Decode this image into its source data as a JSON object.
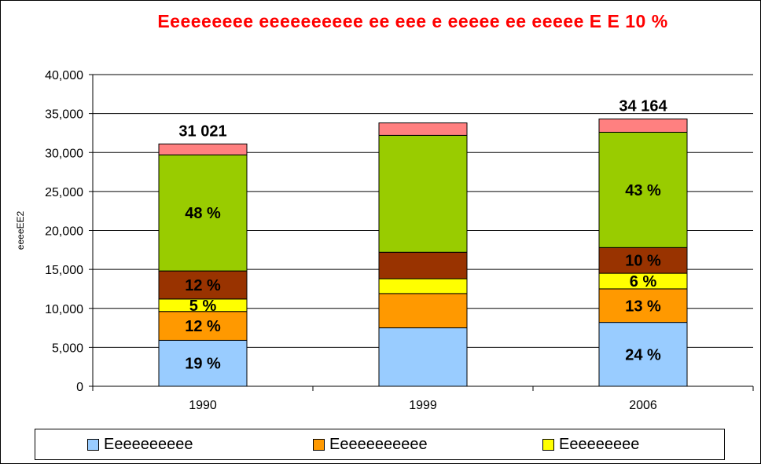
{
  "chart_data": {
    "type": "bar",
    "stacked": true,
    "title": "Eeeeeeeee eeeeeeeeee ee eee e eeeee ee eeeee E E 10 %",
    "title_color": "#ff0000",
    "ylabel": "eeeeEE2",
    "ylim": [
      0,
      40000
    ],
    "yticks": [
      "0",
      "5,000",
      "10,000",
      "15,000",
      "20,000",
      "25,000",
      "30,000",
      "35,000",
      "40,000"
    ],
    "ytick_values": [
      0,
      5000,
      10000,
      15000,
      20000,
      25000,
      30000,
      35000,
      40000
    ],
    "grid": true,
    "categories": [
      "1990",
      "1999",
      "2006"
    ],
    "totals": [
      "31 021",
      "",
      "34 164"
    ],
    "series": [
      {
        "name": "Eeeeeeeeee",
        "color": "#99ccff",
        "values": [
          5900,
          7500,
          8200
        ],
        "labels": [
          "19 %",
          "",
          "24 %"
        ]
      },
      {
        "name": "Eeeeeeeeeee",
        "color": "#ff9900",
        "values": [
          3700,
          4400,
          4300
        ],
        "labels": [
          "12 %",
          "",
          "13 %"
        ]
      },
      {
        "name": "Eeeeeeeee",
        "color": "#ffff00",
        "values": [
          1600,
          1900,
          2000
        ],
        "labels": [
          "5 %",
          "",
          "6 %"
        ]
      },
      {
        "name": "",
        "color": "#993300",
        "values": [
          3600,
          3400,
          3300
        ],
        "labels": [
          "12 %",
          "",
          "10 %"
        ]
      },
      {
        "name": "",
        "color": "#99cc00",
        "values": [
          14900,
          15000,
          14800
        ],
        "labels": [
          "48 %",
          "",
          "43 %"
        ]
      },
      {
        "name": "",
        "color": "#ff8080",
        "values": [
          1400,
          1600,
          1700
        ],
        "labels": [
          "",
          "",
          ""
        ]
      }
    ],
    "legend": [
      {
        "name": "Eeeeeeeeee",
        "color": "#99ccff"
      },
      {
        "name": "Eeeeeeeeeee",
        "color": "#ff9900"
      },
      {
        "name": "Eeeeeeeee",
        "color": "#ffff00"
      }
    ]
  }
}
